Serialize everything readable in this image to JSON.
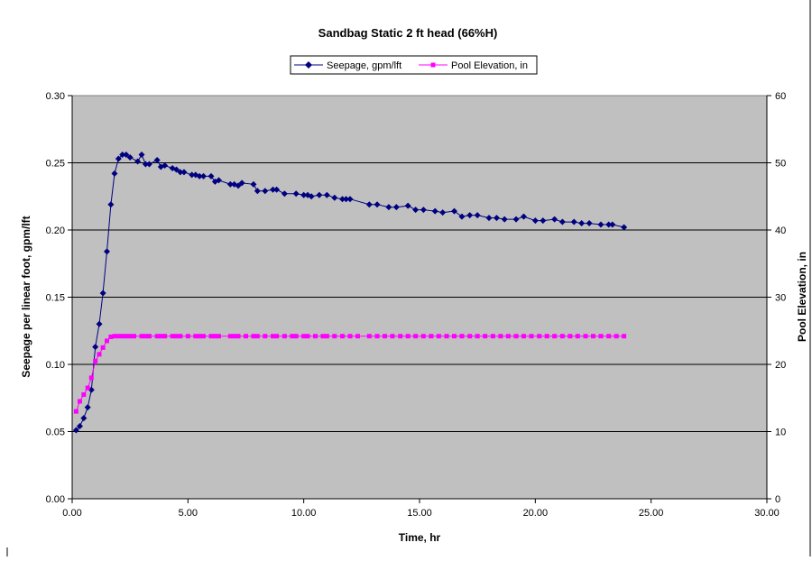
{
  "chart_data": {
    "type": "line",
    "title": "Sandbag Static 2 ft head (66%H)",
    "xlabel": "Time, hr",
    "ylabel": "Seepage per linear foot, gpm/lft",
    "y2label": "Pool Elevation, in",
    "xlim": [
      0,
      30
    ],
    "ylim": [
      0,
      0.3
    ],
    "y2lim": [
      0,
      60
    ],
    "x_ticks": [
      "0.00",
      "5.00",
      "10.00",
      "15.00",
      "20.00",
      "25.00",
      "30.00"
    ],
    "y_ticks": [
      "0.00",
      "0.05",
      "0.10",
      "0.15",
      "0.20",
      "0.25",
      "0.30"
    ],
    "y2_ticks": [
      "0",
      "10",
      "20",
      "30",
      "40",
      "50",
      "60"
    ],
    "grid": "horizontal",
    "plot_background": "#c0c0c0",
    "legend_position": "top-center",
    "series": [
      {
        "name": "Seepage, gpm/lft",
        "axis": "left",
        "color": "#000080",
        "marker": "diamond",
        "x": [
          0.17,
          0.33,
          0.5,
          0.67,
          0.83,
          1.0,
          1.17,
          1.33,
          1.5,
          1.67,
          1.83,
          2.0,
          2.17,
          2.33,
          2.5,
          2.83,
          3.0,
          3.17,
          3.33,
          3.67,
          3.83,
          4.0,
          4.33,
          4.5,
          4.67,
          4.83,
          5.17,
          5.33,
          5.5,
          5.67,
          6.0,
          6.17,
          6.33,
          6.83,
          7.0,
          7.17,
          7.33,
          7.83,
          8.0,
          8.33,
          8.67,
          8.83,
          9.17,
          9.67,
          10.0,
          10.17,
          10.33,
          10.67,
          11.0,
          11.33,
          11.67,
          11.83,
          12.0,
          12.83,
          13.17,
          13.67,
          14.0,
          14.5,
          14.83,
          15.17,
          15.67,
          16.0,
          16.5,
          16.83,
          17.17,
          17.5,
          18.0,
          18.33,
          18.67,
          19.17,
          19.5,
          20.0,
          20.33,
          20.83,
          21.17,
          21.67,
          22.0,
          22.33,
          22.83,
          23.17,
          23.33,
          23.83
        ],
        "y": [
          0.051,
          0.054,
          0.06,
          0.068,
          0.081,
          0.113,
          0.13,
          0.153,
          0.184,
          0.219,
          0.242,
          0.253,
          0.256,
          0.256,
          0.254,
          0.251,
          0.256,
          0.249,
          0.249,
          0.252,
          0.247,
          0.248,
          0.246,
          0.245,
          0.243,
          0.243,
          0.241,
          0.241,
          0.24,
          0.24,
          0.24,
          0.236,
          0.237,
          0.234,
          0.234,
          0.233,
          0.235,
          0.234,
          0.229,
          0.229,
          0.23,
          0.23,
          0.227,
          0.227,
          0.226,
          0.226,
          0.225,
          0.226,
          0.226,
          0.224,
          0.223,
          0.223,
          0.223,
          0.219,
          0.219,
          0.217,
          0.217,
          0.218,
          0.215,
          0.215,
          0.214,
          0.213,
          0.214,
          0.21,
          0.211,
          0.211,
          0.209,
          0.209,
          0.208,
          0.208,
          0.21,
          0.207,
          0.207,
          0.208,
          0.206,
          0.206,
          0.205,
          0.205,
          0.204,
          0.204,
          0.204,
          0.202
        ]
      },
      {
        "name": "Pool Elevation, in",
        "axis": "right",
        "color": "#ff00ff",
        "marker": "square",
        "x": [
          0.17,
          0.33,
          0.5,
          0.67,
          0.83,
          1.0,
          1.17,
          1.33,
          1.5,
          1.67,
          1.83,
          2.0,
          2.17,
          2.33,
          2.5,
          2.67,
          3.0,
          3.17,
          3.33,
          3.67,
          3.83,
          4.0,
          4.33,
          4.5,
          4.67,
          5.0,
          5.33,
          5.5,
          5.67,
          6.0,
          6.17,
          6.33,
          6.83,
          7.0,
          7.17,
          7.5,
          7.83,
          8.0,
          8.33,
          8.67,
          8.83,
          9.17,
          9.5,
          9.67,
          10.0,
          10.17,
          10.5,
          10.83,
          11.0,
          11.33,
          11.67,
          12.0,
          12.33,
          12.83,
          13.17,
          13.5,
          13.83,
          14.17,
          14.5,
          14.83,
          15.17,
          15.5,
          15.83,
          16.17,
          16.5,
          16.83,
          17.17,
          17.5,
          17.83,
          18.17,
          18.5,
          18.83,
          19.17,
          19.5,
          19.83,
          20.17,
          20.5,
          20.83,
          21.17,
          21.5,
          21.83,
          22.17,
          22.5,
          22.83,
          23.17,
          23.5,
          23.83
        ],
        "y": [
          13,
          14.5,
          15.5,
          16.5,
          18,
          20.5,
          21.5,
          22.5,
          23.5,
          24.1,
          24.2,
          24.2,
          24.2,
          24.2,
          24.2,
          24.2,
          24.2,
          24.2,
          24.2,
          24.2,
          24.2,
          24.2,
          24.2,
          24.2,
          24.2,
          24.2,
          24.2,
          24.2,
          24.2,
          24.2,
          24.2,
          24.2,
          24.2,
          24.2,
          24.2,
          24.2,
          24.2,
          24.2,
          24.2,
          24.2,
          24.2,
          24.2,
          24.2,
          24.2,
          24.2,
          24.2,
          24.2,
          24.2,
          24.2,
          24.2,
          24.2,
          24.2,
          24.2,
          24.2,
          24.2,
          24.2,
          24.2,
          24.2,
          24.2,
          24.2,
          24.2,
          24.2,
          24.2,
          24.2,
          24.2,
          24.2,
          24.2,
          24.2,
          24.2,
          24.2,
          24.2,
          24.2,
          24.2,
          24.2,
          24.2,
          24.2,
          24.2,
          24.2,
          24.2,
          24.2,
          24.2,
          24.2,
          24.2,
          24.2,
          24.2,
          24.2,
          24.2
        ]
      }
    ]
  }
}
